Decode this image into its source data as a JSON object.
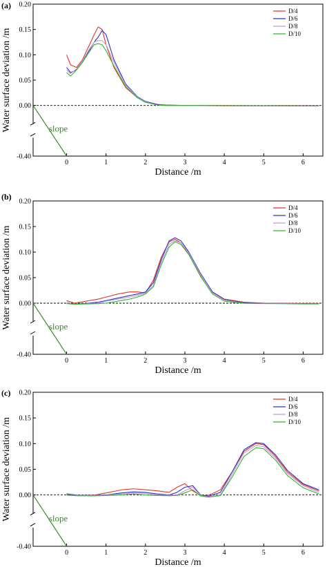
{
  "chart_data": [
    {
      "type": "line",
      "panel_label": "(a)",
      "xlabel": "Distance /m",
      "ylabel": "Water surface deviation /m",
      "xlim": [
        -0.85,
        6.5
      ],
      "ylim": [
        -0.4,
        0.2
      ],
      "axis_break": [
        -0.06,
        -0.32
      ],
      "xticks": [
        0,
        1,
        2,
        3,
        4,
        5,
        6
      ],
      "yticks": [
        -0.4,
        0.0,
        0.05,
        0.1,
        0.15,
        0.2
      ],
      "ytick_labels": [
        "-0.40",
        "0.00",
        "0.05",
        "0.10",
        "0.15",
        "0.20"
      ],
      "reference_line_y": 0.0,
      "legend_position": "top-right",
      "annotation": "slope",
      "slope_line": [
        [
          -0.85,
          0.0
        ],
        [
          0.0,
          -0.4
        ]
      ],
      "series": [
        {
          "name": "D/4",
          "color": "#e8312c",
          "x": [
            0,
            0.1,
            0.25,
            0.4,
            0.55,
            0.7,
            0.8,
            0.9,
            1.0,
            1.2,
            1.5,
            1.8,
            2.0,
            2.3,
            2.5,
            3,
            4,
            5,
            5.5,
            6,
            6.4
          ],
          "y": [
            0.1,
            0.08,
            0.075,
            0.09,
            0.115,
            0.14,
            0.155,
            0.15,
            0.12,
            0.075,
            0.035,
            0.015,
            0.007,
            0.002,
            0.001,
            0.0,
            -0.001,
            -0.002,
            -0.001,
            -0.002,
            -0.002
          ]
        },
        {
          "name": "D/6",
          "color": "#2b33c8",
          "x": [
            0,
            0.1,
            0.25,
            0.4,
            0.55,
            0.7,
            0.8,
            0.9,
            1.0,
            1.2,
            1.5,
            1.8,
            2.0,
            2.3,
            2.5,
            3,
            4,
            5,
            5.5,
            6,
            6.4
          ],
          "y": [
            0.075,
            0.065,
            0.07,
            0.085,
            0.105,
            0.125,
            0.135,
            0.148,
            0.14,
            0.09,
            0.042,
            0.017,
            0.008,
            0.002,
            0.0,
            -0.001,
            -0.002,
            -0.002,
            -0.003,
            -0.004,
            -0.003
          ]
        },
        {
          "name": "D/8",
          "color": "#c39bd3",
          "x": [
            0,
            0.1,
            0.25,
            0.4,
            0.55,
            0.7,
            0.8,
            0.9,
            1.0,
            1.2,
            1.5,
            1.8,
            2.0,
            2.3,
            2.5,
            3,
            4,
            5,
            5.5,
            6,
            6.4
          ],
          "y": [
            0.07,
            0.063,
            0.072,
            0.088,
            0.108,
            0.125,
            0.128,
            0.128,
            0.12,
            0.085,
            0.04,
            0.016,
            0.007,
            0.001,
            0.0,
            -0.001,
            -0.002,
            -0.003,
            -0.003,
            -0.004,
            -0.004
          ]
        },
        {
          "name": "D/10",
          "color": "#2db82d",
          "x": [
            0,
            0.1,
            0.25,
            0.4,
            0.55,
            0.7,
            0.8,
            0.9,
            1.0,
            1.2,
            1.5,
            1.8,
            2.0,
            2.3,
            2.5,
            3,
            4,
            5,
            5.5,
            6,
            6.4
          ],
          "y": [
            0.065,
            0.058,
            0.07,
            0.085,
            0.103,
            0.12,
            0.122,
            0.12,
            0.108,
            0.078,
            0.037,
            0.015,
            0.006,
            0.001,
            0.0,
            -0.001,
            -0.002,
            -0.003,
            -0.003,
            -0.004,
            -0.004
          ]
        }
      ]
    },
    {
      "type": "line",
      "panel_label": "(b)",
      "xlabel": "Distance /m",
      "ylabel": "Water surface deviation /m",
      "xlim": [
        -0.85,
        6.5
      ],
      "ylim": [
        -0.4,
        0.2
      ],
      "axis_break": [
        -0.06,
        -0.32
      ],
      "xticks": [
        0,
        1,
        2,
        3,
        4,
        5,
        6
      ],
      "yticks": [
        -0.4,
        0.0,
        0.05,
        0.1,
        0.15,
        0.2
      ],
      "ytick_labels": [
        "-0.40",
        "0.00",
        "0.05",
        "0.10",
        "0.15",
        "0.20"
      ],
      "reference_line_y": 0.0,
      "legend_position": "top-right",
      "annotation": "slope",
      "slope_line": [
        [
          -0.85,
          0.0
        ],
        [
          0.0,
          -0.4
        ]
      ],
      "series": [
        {
          "name": "D/4",
          "color": "#e8312c",
          "x": [
            0,
            0.2,
            0.5,
            0.8,
            1.0,
            1.3,
            1.6,
            1.8,
            2.0,
            2.2,
            2.4,
            2.6,
            2.75,
            2.9,
            3.1,
            3.4,
            3.7,
            4.0,
            4.5,
            5.0,
            5.5,
            6.0,
            6.4
          ],
          "y": [
            0.005,
            0.0,
            0.004,
            0.008,
            0.012,
            0.018,
            0.022,
            0.022,
            0.02,
            0.045,
            0.09,
            0.12,
            0.125,
            0.118,
            0.095,
            0.055,
            0.022,
            0.008,
            0.002,
            0.0,
            -0.001,
            -0.002,
            -0.002
          ]
        },
        {
          "name": "D/6",
          "color": "#2b33c8",
          "x": [
            0,
            0.2,
            0.5,
            0.8,
            1.0,
            1.3,
            1.6,
            1.8,
            2.0,
            2.2,
            2.4,
            2.6,
            2.75,
            2.9,
            3.1,
            3.4,
            3.7,
            4.0,
            4.5,
            5.0,
            5.5,
            6.0,
            6.4
          ],
          "y": [
            0.0,
            -0.006,
            -0.002,
            0.002,
            0.005,
            0.01,
            0.015,
            0.018,
            0.022,
            0.04,
            0.085,
            0.122,
            0.128,
            0.122,
            0.1,
            0.058,
            0.022,
            0.007,
            0.001,
            -0.001,
            -0.002,
            -0.003,
            -0.003
          ]
        },
        {
          "name": "D/8",
          "color": "#c39bd3",
          "x": [
            0,
            0.2,
            0.5,
            0.8,
            1.0,
            1.3,
            1.6,
            1.8,
            2.0,
            2.2,
            2.4,
            2.6,
            2.75,
            2.9,
            3.1,
            3.4,
            3.7,
            4.0,
            4.5,
            5.0,
            5.5,
            6.0,
            6.4
          ],
          "y": [
            -0.002,
            -0.007,
            -0.004,
            0.0,
            0.004,
            0.008,
            0.012,
            0.015,
            0.02,
            0.035,
            0.08,
            0.115,
            0.122,
            0.118,
            0.098,
            0.056,
            0.02,
            0.006,
            0.0,
            -0.002,
            -0.003,
            -0.004,
            -0.004
          ]
        },
        {
          "name": "D/10",
          "color": "#2db82d",
          "x": [
            0,
            0.2,
            0.5,
            0.8,
            1.0,
            1.3,
            1.6,
            1.8,
            2.0,
            2.2,
            2.4,
            2.6,
            2.75,
            2.9,
            3.1,
            3.4,
            3.7,
            4.0,
            4.5,
            5.0,
            5.5,
            6.0,
            6.4
          ],
          "y": [
            -0.004,
            -0.008,
            -0.006,
            -0.003,
            0.0,
            0.004,
            0.008,
            0.012,
            0.018,
            0.032,
            0.075,
            0.11,
            0.12,
            0.115,
            0.095,
            0.052,
            0.018,
            0.004,
            -0.001,
            -0.003,
            -0.004,
            -0.006,
            -0.006
          ]
        }
      ]
    },
    {
      "type": "line",
      "panel_label": "(c)",
      "xlabel": "Distance /m",
      "ylabel": "Water surface deviation /m",
      "xlim": [
        -0.85,
        6.5
      ],
      "ylim": [
        -0.4,
        0.2
      ],
      "axis_break": [
        -0.06,
        -0.32
      ],
      "xticks": [
        0,
        1,
        2,
        3,
        4,
        5,
        6
      ],
      "yticks": [
        -0.4,
        0.0,
        0.05,
        0.1,
        0.15,
        0.2
      ],
      "ytick_labels": [
        "-0.40",
        "0.00",
        "0.05",
        "0.10",
        "0.15",
        "0.20"
      ],
      "reference_line_y": 0.0,
      "legend_position": "top-right",
      "annotation": "slope",
      "slope_line": [
        [
          -0.85,
          0.0
        ],
        [
          0.0,
          -0.4
        ]
      ],
      "series": [
        {
          "name": "D/4",
          "color": "#e8312c",
          "x": [
            0,
            0.3,
            0.7,
            1.0,
            1.4,
            1.7,
            2.0,
            2.3,
            2.6,
            2.8,
            3.0,
            3.2,
            3.4,
            3.6,
            3.9,
            4.2,
            4.5,
            4.8,
            5.0,
            5.3,
            5.6,
            6.0,
            6.4
          ],
          "y": [
            0.002,
            -0.004,
            -0.002,
            0.004,
            0.01,
            0.012,
            0.01,
            0.008,
            0.005,
            0.015,
            0.022,
            0.008,
            -0.005,
            -0.003,
            0.01,
            0.045,
            0.085,
            0.1,
            0.098,
            0.075,
            0.045,
            0.02,
            0.008
          ]
        },
        {
          "name": "D/6",
          "color": "#2b33c8",
          "x": [
            0,
            0.3,
            0.7,
            1.0,
            1.4,
            1.7,
            2.0,
            2.3,
            2.6,
            2.8,
            3.0,
            3.2,
            3.4,
            3.6,
            3.9,
            4.2,
            4.5,
            4.8,
            5.0,
            5.3,
            5.6,
            6.0,
            6.4
          ],
          "y": [
            0.002,
            -0.003,
            -0.004,
            0.0,
            0.004,
            0.006,
            0.005,
            0.002,
            0.0,
            0.005,
            0.015,
            0.018,
            0.0,
            -0.01,
            0.005,
            0.045,
            0.088,
            0.102,
            0.1,
            0.078,
            0.048,
            0.022,
            0.01
          ]
        },
        {
          "name": "D/8",
          "color": "#c39bd3",
          "x": [
            0,
            0.3,
            0.7,
            1.0,
            1.4,
            1.7,
            2.0,
            2.3,
            2.6,
            2.8,
            3.0,
            3.2,
            3.4,
            3.6,
            3.9,
            4.2,
            4.5,
            4.8,
            5.0,
            5.3,
            5.6,
            6.0,
            6.4
          ],
          "y": [
            0.0,
            -0.004,
            -0.005,
            -0.002,
            0.002,
            0.004,
            0.003,
            0.0,
            -0.003,
            0.0,
            0.008,
            0.015,
            -0.004,
            -0.014,
            0.0,
            0.04,
            0.082,
            0.096,
            0.094,
            0.072,
            0.042,
            0.018,
            0.005
          ]
        },
        {
          "name": "D/10",
          "color": "#2db82d",
          "x": [
            0,
            0.3,
            0.7,
            1.0,
            1.4,
            1.7,
            2.0,
            2.3,
            2.6,
            2.8,
            3.0,
            3.2,
            3.4,
            3.6,
            3.9,
            4.2,
            4.5,
            4.8,
            5.0,
            5.3,
            5.6,
            6.0,
            6.4
          ],
          "y": [
            -0.002,
            -0.006,
            -0.007,
            -0.004,
            0.0,
            0.002,
            0.0,
            -0.004,
            -0.006,
            -0.004,
            0.004,
            0.01,
            -0.008,
            -0.018,
            -0.005,
            0.035,
            0.075,
            0.092,
            0.09,
            0.068,
            0.038,
            0.014,
            0.002
          ]
        }
      ]
    }
  ]
}
